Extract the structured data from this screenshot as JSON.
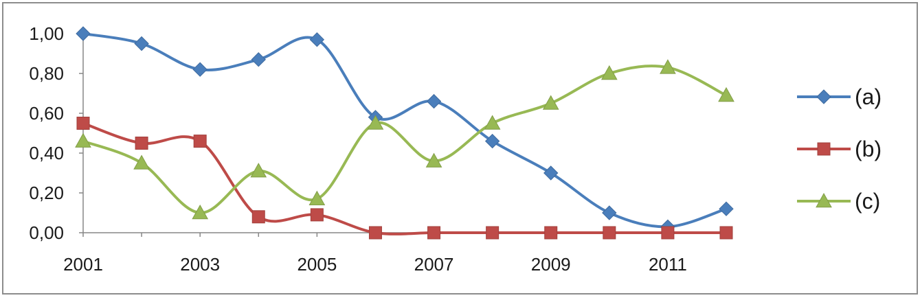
{
  "chart_data": {
    "type": "line",
    "title": "",
    "xlabel": "",
    "ylabel": "",
    "x": [
      2001,
      2002,
      2003,
      2004,
      2005,
      2006,
      2007,
      2008,
      2009,
      2010,
      2011,
      2012
    ],
    "x_tick_labels": [
      "2001",
      "2003",
      "2005",
      "2007",
      "2009",
      "2011"
    ],
    "y_tick_labels": [
      "0,00",
      "0,20",
      "0,40",
      "0,60",
      "0,80",
      "1,00"
    ],
    "xlim": [
      2001,
      2012
    ],
    "ylim": [
      0,
      1
    ],
    "grid": false,
    "smooth": true,
    "legend_position": "right",
    "series": [
      {
        "name": "(a)",
        "color": "#4a7ebb",
        "marker": "diamond",
        "values": [
          1.0,
          0.95,
          0.82,
          0.87,
          0.97,
          0.58,
          0.66,
          0.46,
          0.3,
          0.1,
          0.03,
          0.12
        ]
      },
      {
        "name": "(b)",
        "color": "#be4b48",
        "marker": "square",
        "values": [
          0.55,
          0.45,
          0.46,
          0.08,
          0.09,
          0.0,
          0.0,
          0.0,
          0.0,
          0.0,
          0.0,
          0.0
        ]
      },
      {
        "name": "(c)",
        "color": "#98b954",
        "marker": "triangle",
        "values": [
          0.46,
          0.35,
          0.1,
          0.31,
          0.17,
          0.55,
          0.36,
          0.55,
          0.65,
          0.8,
          0.83,
          0.69
        ]
      }
    ]
  }
}
